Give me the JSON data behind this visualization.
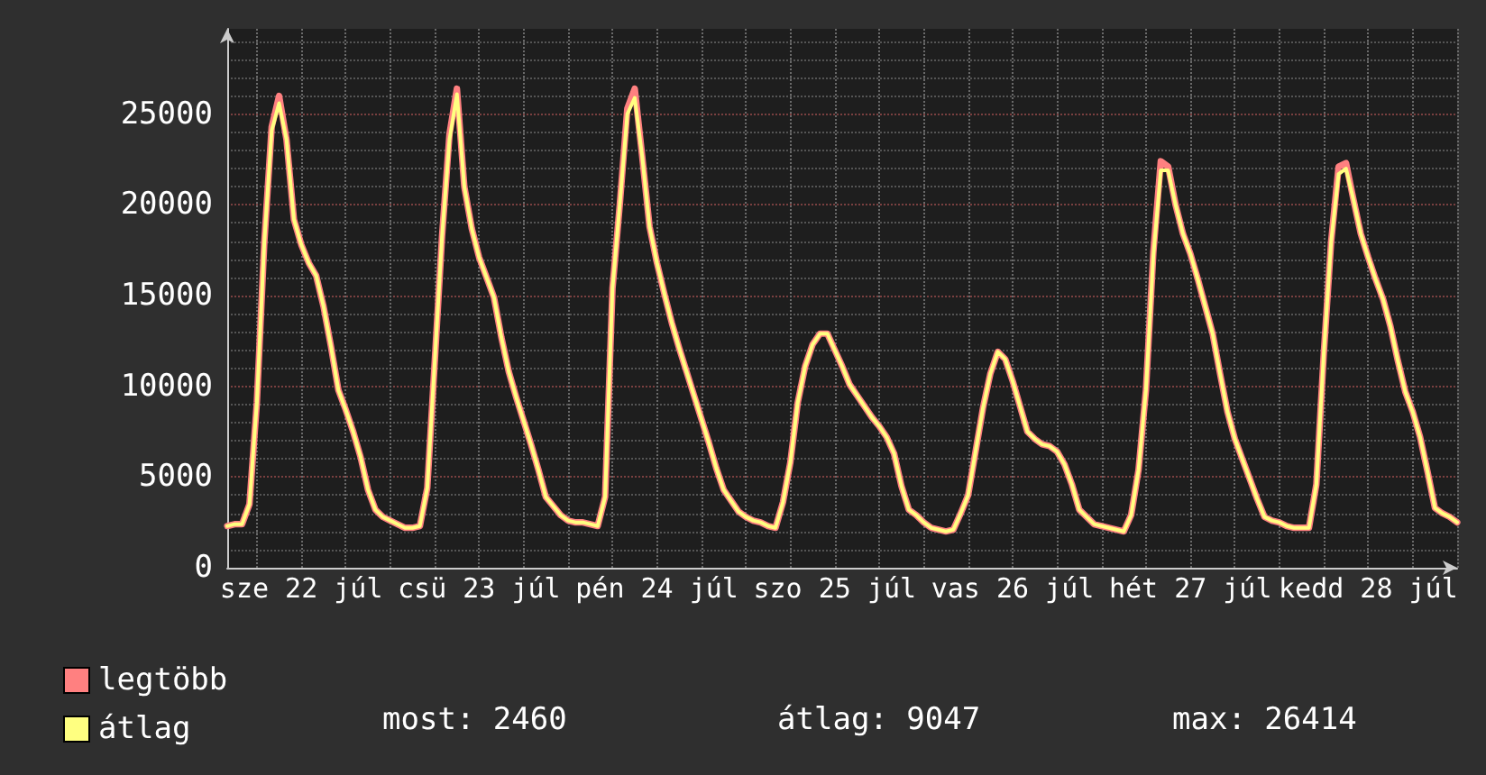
{
  "chart_data": {
    "type": "line",
    "categories": [
      null,
      null,
      null,
      null,
      null,
      null,
      null,
      null,
      null,
      null,
      "sze 22 júl",
      null,
      null,
      null,
      null,
      null,
      null,
      null,
      null,
      null,
      null,
      null,
      null,
      null,
      null,
      null,
      null,
      null,
      null,
      null,
      null,
      null,
      null,
      null,
      "csü 23 júl",
      null,
      null,
      null,
      null,
      null,
      null,
      null,
      null,
      null,
      null,
      null,
      null,
      null,
      null,
      null,
      null,
      null,
      null,
      null,
      null,
      null,
      null,
      null,
      "pén 24 júl",
      null,
      null,
      null,
      null,
      null,
      null,
      null,
      null,
      null,
      null,
      null,
      null,
      null,
      null,
      null,
      null,
      null,
      null,
      null,
      null,
      null,
      null,
      null,
      "szo 25 júl",
      null,
      null,
      null,
      null,
      null,
      null,
      null,
      null,
      null,
      null,
      null,
      null,
      null,
      null,
      null,
      null,
      null,
      null,
      null,
      null,
      null,
      null,
      null,
      "vas 26 júl",
      null,
      null,
      null,
      null,
      null,
      null,
      null,
      null,
      null,
      null,
      null,
      null,
      null,
      null,
      null,
      null,
      null,
      null,
      null,
      null,
      null,
      null,
      null,
      "hét 27 júl",
      null,
      null,
      null,
      null,
      null,
      null,
      null,
      null,
      null,
      null,
      null,
      null,
      null,
      null,
      null,
      null,
      null,
      null,
      null,
      null,
      null,
      null,
      null,
      "kedd 28 júl",
      null,
      null,
      null,
      null,
      null,
      null,
      null,
      null,
      null,
      null,
      null,
      null
    ],
    "series": [
      {
        "name": "legtöbb",
        "color": "#ff8080",
        "values": [
          2300,
          2400,
          2400,
          3500,
          9100,
          17900,
          24300,
          26000,
          23600,
          19200,
          17800,
          16800,
          16100,
          14400,
          12200,
          9800,
          8700,
          7500,
          6100,
          4300,
          3200,
          2800,
          2600,
          2400,
          2200,
          2200,
          2300,
          4400,
          11300,
          18300,
          23900,
          26400,
          21000,
          18700,
          17100,
          16000,
          14900,
          12700,
          10800,
          9400,
          8100,
          6800,
          5400,
          3900,
          3400,
          2900,
          2600,
          2500,
          2500,
          2400,
          2300,
          3900,
          15400,
          20100,
          25300,
          26400,
          22700,
          18800,
          16800,
          15100,
          13500,
          12100,
          10800,
          9500,
          8200,
          6900,
          5500,
          4300,
          3700,
          3100,
          2800,
          2600,
          2500,
          2300,
          2200,
          3600,
          5800,
          9100,
          11100,
          12300,
          12900,
          12900,
          12000,
          11100,
          10100,
          9500,
          8900,
          8300,
          7800,
          7200,
          6300,
          4500,
          3200,
          2900,
          2500,
          2200,
          2100,
          2000,
          2100,
          3000,
          4000,
          6400,
          8800,
          10700,
          11900,
          11500,
          10300,
          8900,
          7500,
          7100,
          6800,
          6700,
          6400,
          5700,
          4600,
          3200,
          2800,
          2400,
          2300,
          2200,
          2100,
          2000,
          2900,
          5400,
          9800,
          17400,
          22400,
          22100,
          20000,
          18400,
          17300,
          15900,
          14400,
          12900,
          10700,
          8600,
          7100,
          6000,
          4900,
          3800,
          2800,
          2600,
          2500,
          2300,
          2200,
          2200,
          2200,
          4600,
          11800,
          18000,
          22100,
          22300,
          20300,
          18400,
          17100,
          15900,
          14800,
          13300,
          11400,
          9700,
          8600,
          7200,
          5300,
          3300,
          3000,
          2800,
          2500
        ]
      },
      {
        "name": "átlag",
        "color": "#ffff80",
        "values": [
          2300,
          2400,
          2400,
          3500,
          9100,
          17900,
          24100,
          25600,
          23600,
          19200,
          17800,
          16800,
          16100,
          14400,
          12200,
          9800,
          8700,
          7500,
          6100,
          4300,
          3200,
          2800,
          2600,
          2400,
          2200,
          2200,
          2300,
          4400,
          11300,
          18300,
          23600,
          26100,
          21000,
          18700,
          17100,
          16000,
          14900,
          12700,
          10800,
          9400,
          8100,
          6800,
          5400,
          3900,
          3400,
          2900,
          2600,
          2500,
          2500,
          2400,
          2300,
          3900,
          15400,
          20100,
          25000,
          25900,
          22700,
          18800,
          16800,
          15100,
          13500,
          12100,
          10800,
          9500,
          8200,
          6900,
          5500,
          4300,
          3700,
          3100,
          2800,
          2600,
          2500,
          2300,
          2200,
          3600,
          5800,
          9100,
          11100,
          12300,
          12900,
          12900,
          12000,
          11100,
          10100,
          9500,
          8900,
          8300,
          7800,
          7200,
          6300,
          4500,
          3200,
          2900,
          2500,
          2200,
          2100,
          2000,
          2100,
          3000,
          4000,
          6400,
          8800,
          10700,
          11900,
          11500,
          10300,
          8900,
          7500,
          7100,
          6800,
          6700,
          6400,
          5700,
          4600,
          3200,
          2800,
          2400,
          2300,
          2200,
          2100,
          2000,
          2900,
          5400,
          9800,
          17200,
          21900,
          21900,
          20000,
          18400,
          17300,
          15900,
          14400,
          12900,
          10700,
          8600,
          7100,
          6000,
          4900,
          3800,
          2800,
          2600,
          2500,
          2300,
          2200,
          2200,
          2200,
          4600,
          11800,
          18000,
          21700,
          22000,
          20300,
          18400,
          17100,
          15900,
          14800,
          13300,
          11400,
          9700,
          8600,
          7200,
          5300,
          3300,
          3000,
          2800,
          2500
        ]
      }
    ],
    "ylim": [
      0,
      29700
    ],
    "yticks": [
      0,
      5000,
      10000,
      15000,
      20000,
      25000
    ],
    "grid": true,
    "legend": "bottom left",
    "marker": "none",
    "line_style": "solid",
    "annotations": [
      "most: 2460",
      "átlag: 9047",
      "max: 26414"
    ]
  }
}
